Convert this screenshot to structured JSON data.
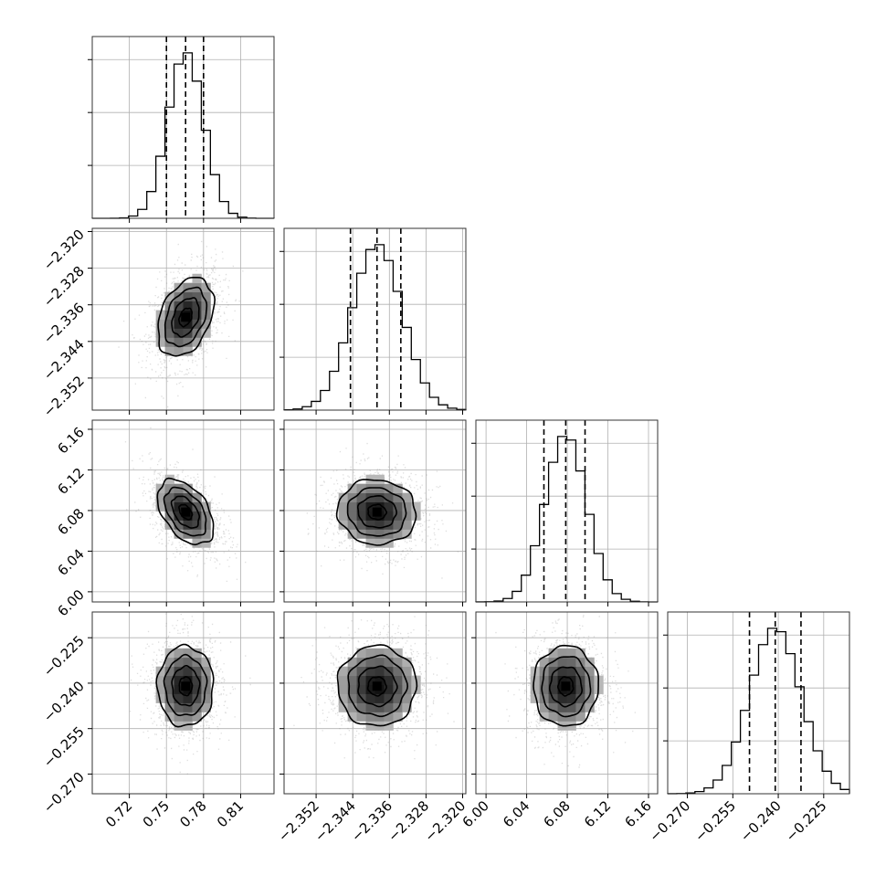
{
  "chart_data": {
    "type": "corner",
    "parameters": [
      {
        "ticks": [
          "0.72",
          "0.75",
          "0.78",
          "0.81"
        ],
        "tick_values": [
          0.72,
          0.75,
          0.78,
          0.81
        ],
        "range": [
          0.69,
          0.837
        ],
        "quantiles": [
          0.75,
          0.7655,
          0.78
        ],
        "mean": 0.7655,
        "sd": 0.0145
      },
      {
        "ticks": [
          "−2.352",
          "−2.344",
          "−2.336",
          "−2.328",
          "−2.320"
        ],
        "tick_values": [
          -2.352,
          -2.344,
          -2.336,
          -2.328,
          -2.32
        ],
        "range": [
          -2.359,
          -2.3193
        ],
        "quantiles": [
          -2.3445,
          -2.3387,
          -2.3335
        ],
        "mean": -2.3387,
        "sd": 0.0055
      },
      {
        "ticks": [
          "6.00",
          "6.04",
          "6.08",
          "6.12",
          "6.16"
        ],
        "tick_values": [
          6.0,
          6.04,
          6.08,
          6.12,
          6.16
        ],
        "range": [
          5.99,
          6.169
        ],
        "quantiles": [
          6.057,
          6.0785,
          6.0975
        ],
        "mean": 6.0785,
        "sd": 0.0205
      },
      {
        "ticks": [
          "−0.270",
          "−0.255",
          "−0.240",
          "−0.225"
        ],
        "tick_values": [
          -0.27,
          -0.255,
          -0.24,
          -0.225
        ],
        "range": [
          -0.2765,
          -0.2165
        ],
        "quantiles": [
          -0.2495,
          -0.241,
          -0.2325
        ],
        "mean": -0.241,
        "sd": 0.0085
      }
    ],
    "correlations": [
      [
        1,
        0.35,
        -0.45,
        0.0
      ],
      [
        0.35,
        1,
        -0.05,
        0.0
      ],
      [
        -0.45,
        -0.05,
        1,
        0.0
      ],
      [
        0.0,
        0.0,
        0.0,
        1
      ]
    ],
    "title": "",
    "grid": true
  }
}
